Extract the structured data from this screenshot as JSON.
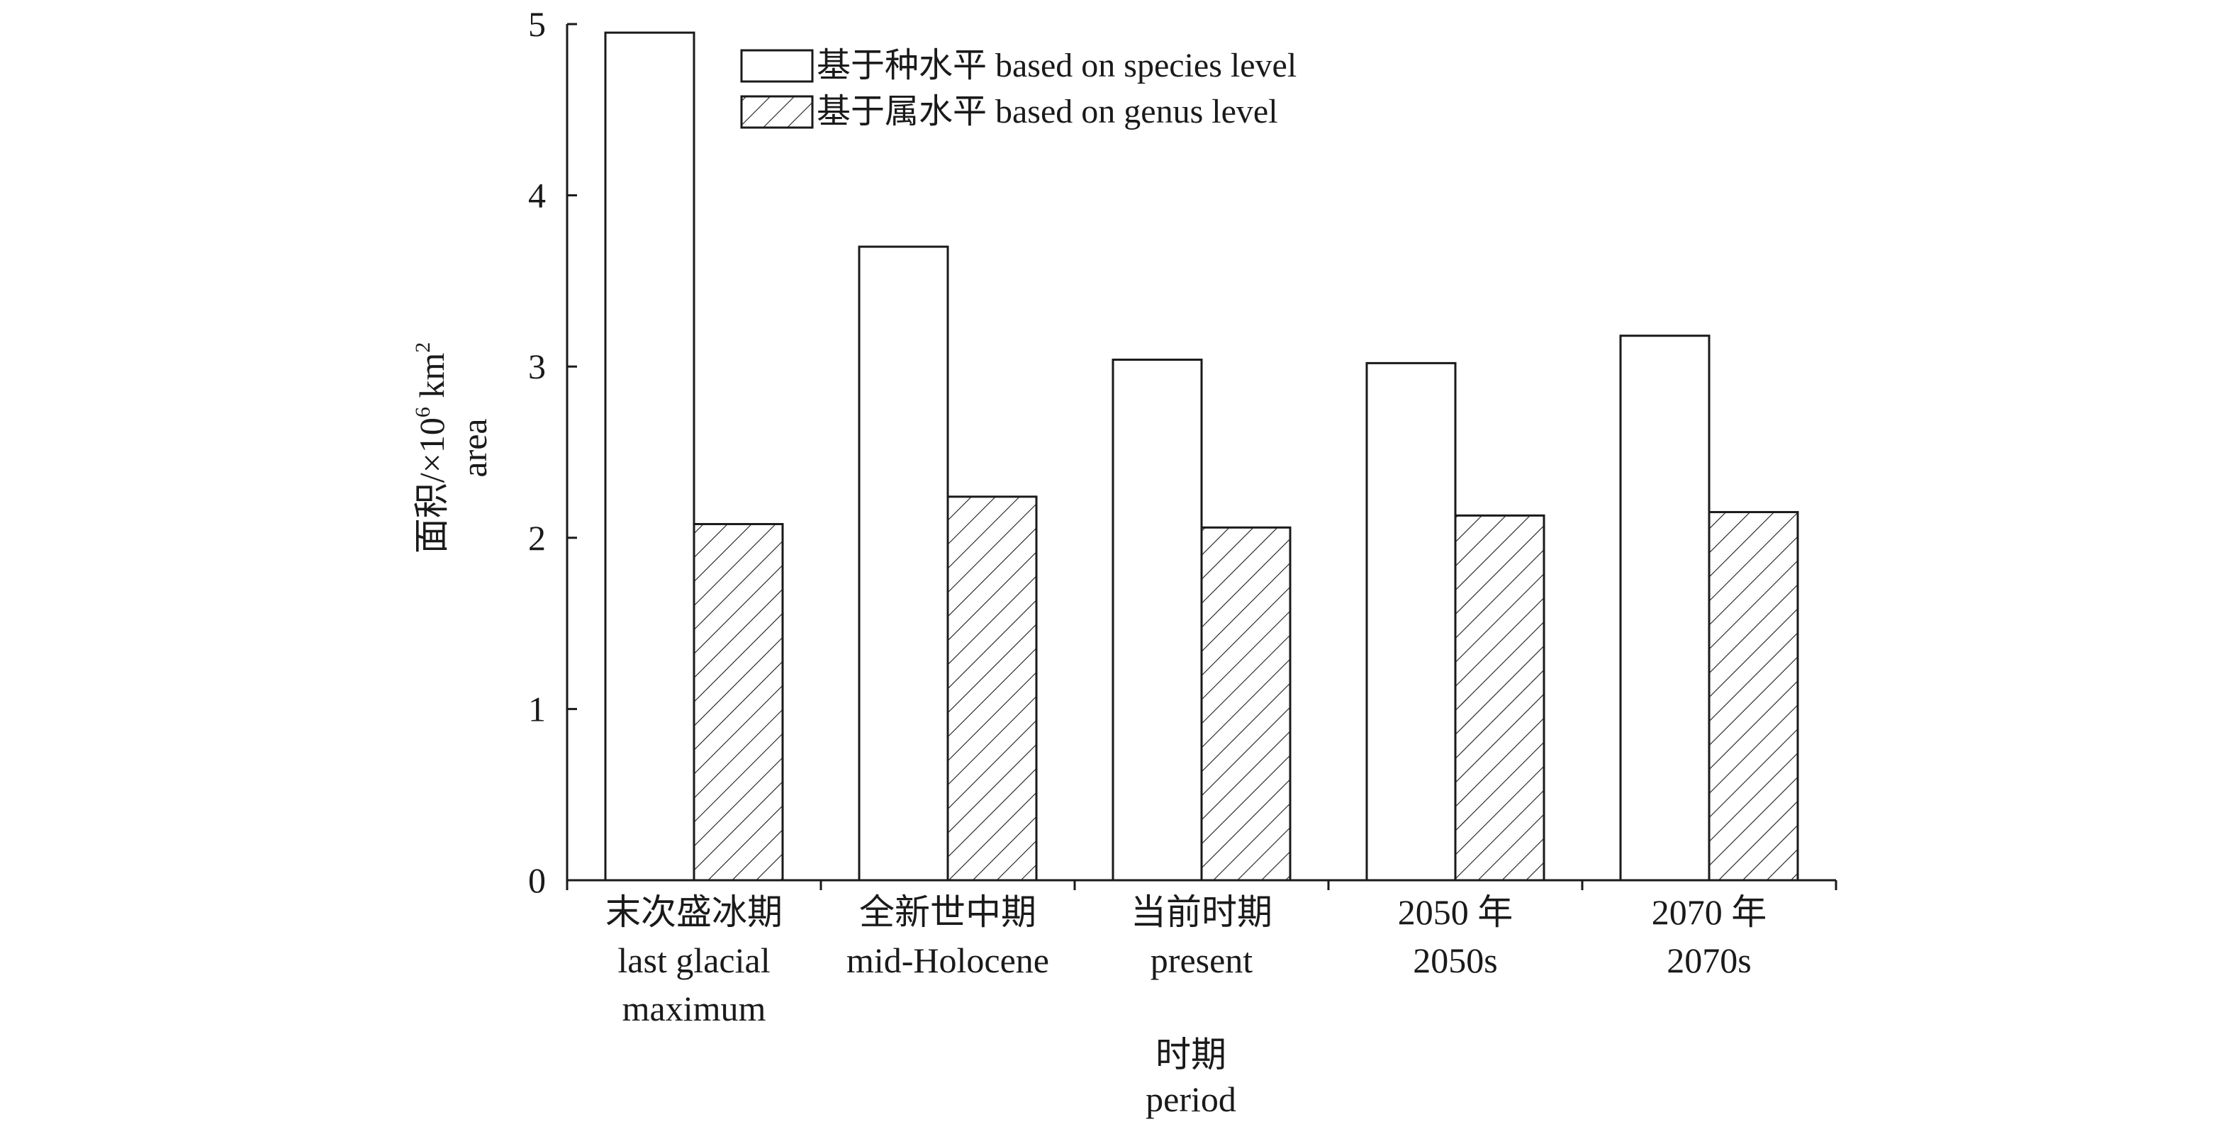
{
  "chart_data": {
    "type": "bar",
    "title": "",
    "categories": [
      {
        "zh": "末次盛冰期",
        "en": [
          "last glacial",
          "maximum"
        ]
      },
      {
        "zh": "全新世中期",
        "en": [
          "mid-Holocene"
        ]
      },
      {
        "zh": "当前时期",
        "en": [
          "present"
        ]
      },
      {
        "zh": "2050 年",
        "en": [
          "2050s"
        ]
      },
      {
        "zh": "2070 年",
        "en": [
          "2070s"
        ]
      }
    ],
    "series": [
      {
        "name": "基于种水平 based on species level",
        "pattern": "none",
        "values": [
          4.95,
          3.7,
          3.04,
          3.02,
          3.18
        ]
      },
      {
        "name": "基于属水平 based on genus level",
        "pattern": "diagonal-hatch",
        "values": [
          2.08,
          2.24,
          2.06,
          2.13,
          2.15
        ]
      }
    ],
    "xlabel": {
      "zh": "时期",
      "en": "period"
    },
    "ylabel": {
      "zh": "面积/×10",
      "sup1": "6",
      "unit": " km",
      "sup2": "2",
      "en": "area"
    },
    "ylim": [
      0,
      5
    ],
    "yticks": [
      0,
      1,
      2,
      3,
      4,
      5
    ],
    "legend_position": "top",
    "colors": {
      "stroke": "#1a1a1a",
      "fill": "#ffffff",
      "background": "#ffffff"
    }
  }
}
